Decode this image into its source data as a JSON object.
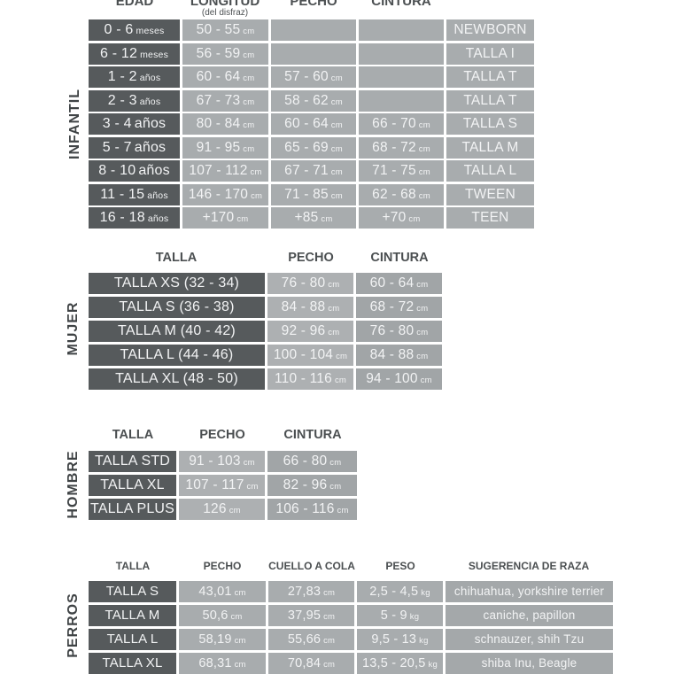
{
  "colors": {
    "background": "#ffffff",
    "dark_cell": "#565a5c",
    "light_cell": "#a8acae",
    "pecho_cell": "#adb0b2",
    "cintura_cell": "#a1a5a7",
    "suggestion_cell": "#a4a8aa",
    "cell_text": "#f2f3f4",
    "header_text": "#4b4f51",
    "section_label_text": "#3f4345"
  },
  "sections": {
    "infantil": {
      "label": "INFANTIL",
      "headers": [
        "EDAD",
        "LONGITUD",
        "PECHO",
        "CINTURA"
      ],
      "header_sub": "(del disfraz)",
      "rows": [
        {
          "cells": [
            {
              "v": "0 - 6",
              "u": "meses"
            },
            {
              "v": "50 - 55",
              "u": "cm"
            },
            {
              "v": ""
            },
            {
              "v": ""
            },
            {
              "v": "NEWBORN"
            }
          ]
        },
        {
          "cells": [
            {
              "v": "6 - 12",
              "u": "meses"
            },
            {
              "v": "56 - 59",
              "u": "cm"
            },
            {
              "v": ""
            },
            {
              "v": ""
            },
            {
              "v": "TALLA I"
            }
          ]
        },
        {
          "cells": [
            {
              "v": "1 - 2",
              "u": "años"
            },
            {
              "v": "60 - 64",
              "u": "cm"
            },
            {
              "v": "57 - 60",
              "u": "cm"
            },
            {
              "v": ""
            },
            {
              "v": "TALLA T"
            }
          ]
        },
        {
          "cells": [
            {
              "v": "2 - 3",
              "u": "años"
            },
            {
              "v": "67 - 73",
              "u": "cm"
            },
            {
              "v": "58 - 62",
              "u": "cm"
            },
            {
              "v": ""
            },
            {
              "v": "TALLA T"
            }
          ]
        },
        {
          "cells": [
            {
              "v": "3 - 4",
              "u": "años",
              "big_u": true
            },
            {
              "v": "80 - 84",
              "u": "cm"
            },
            {
              "v": "60 - 64",
              "u": "cm"
            },
            {
              "v": "66 - 70",
              "u": "cm"
            },
            {
              "v": "TALLA S"
            }
          ]
        },
        {
          "cells": [
            {
              "v": "5 - 7",
              "u": "años",
              "big_u": true
            },
            {
              "v": "91 - 95",
              "u": "cm"
            },
            {
              "v": "65 - 69",
              "u": "cm"
            },
            {
              "v": "68 - 72",
              "u": "cm"
            },
            {
              "v": "TALLA M"
            }
          ]
        },
        {
          "cells": [
            {
              "v": "8 - 10",
              "u": "años",
              "big_u": true
            },
            {
              "v": "107 - 112",
              "u": "cm"
            },
            {
              "v": "67 - 71",
              "u": "cm"
            },
            {
              "v": "71 - 75",
              "u": "cm"
            },
            {
              "v": "TALLA L"
            }
          ]
        },
        {
          "cells": [
            {
              "v": "11 - 15",
              "u": "años"
            },
            {
              "v": "146 - 170",
              "u": "cm"
            },
            {
              "v": "71 - 85",
              "u": "cm"
            },
            {
              "v": "62 - 68",
              "u": "cm"
            },
            {
              "v": "TWEEN"
            }
          ]
        },
        {
          "cells": [
            {
              "v": "16 - 18",
              "u": "años"
            },
            {
              "v": "+170",
              "u": "cm"
            },
            {
              "v": "+85",
              "u": "cm"
            },
            {
              "v": "+70",
              "u": "cm"
            },
            {
              "v": "TEEN"
            }
          ]
        }
      ]
    },
    "mujer": {
      "label": "MUJER",
      "headers": [
        "TALLA",
        "PECHO",
        "CINTURA"
      ],
      "rows": [
        {
          "cells": [
            {
              "v": "TALLA XS (32 - 34)"
            },
            {
              "v": "76 - 80",
              "u": "cm"
            },
            {
              "v": "60 - 64",
              "u": "cm"
            }
          ]
        },
        {
          "cells": [
            {
              "v": "TALLA S (36 - 38)"
            },
            {
              "v": "84 - 88",
              "u": "cm"
            },
            {
              "v": "68 - 72",
              "u": "cm"
            }
          ]
        },
        {
          "cells": [
            {
              "v": "TALLA M (40 - 42)"
            },
            {
              "v": "92 - 96",
              "u": "cm"
            },
            {
              "v": "76 - 80",
              "u": "cm"
            }
          ]
        },
        {
          "cells": [
            {
              "v": "TALLA L (44 - 46)"
            },
            {
              "v": "100 - 104",
              "u": "cm"
            },
            {
              "v": "84 - 88",
              "u": "cm"
            }
          ]
        },
        {
          "cells": [
            {
              "v": "TALLA XL (48 - 50)"
            },
            {
              "v": "110 - 116",
              "u": "cm"
            },
            {
              "v": "94 - 100",
              "u": "cm"
            }
          ]
        }
      ]
    },
    "hombre": {
      "label": "HOMBRE",
      "headers": [
        "TALLA",
        "PECHO",
        "CINTURA"
      ],
      "rows": [
        {
          "cells": [
            {
              "v": "TALLA STD"
            },
            {
              "v": "91 - 103",
              "u": "cm"
            },
            {
              "v": "66 - 80",
              "u": "cm"
            }
          ]
        },
        {
          "cells": [
            {
              "v": "TALLA XL"
            },
            {
              "v": "107 - 117",
              "u": "cm"
            },
            {
              "v": "82 - 96",
              "u": "cm"
            }
          ]
        },
        {
          "cells": [
            {
              "v": "TALLA PLUS"
            },
            {
              "v": "126",
              "u": "cm"
            },
            {
              "v": "106 - 116",
              "u": "cm"
            }
          ]
        }
      ]
    },
    "perros": {
      "label": "PERROS",
      "headers": [
        "TALLA",
        "PECHO",
        "CUELLO A COLA",
        "PESO",
        "SUGERENCIA DE RAZA"
      ],
      "rows": [
        {
          "cells": [
            {
              "v": "TALLA S"
            },
            {
              "v": "43,01",
              "u": "cm"
            },
            {
              "v": "27,83",
              "u": "cm"
            },
            {
              "v": "2,5 - 4,5",
              "u": "kg"
            },
            {
              "v": "chihuahua, yorkshire terrier"
            }
          ]
        },
        {
          "cells": [
            {
              "v": "TALLA M"
            },
            {
              "v": "50,6",
              "u": "cm"
            },
            {
              "v": "37,95",
              "u": "cm"
            },
            {
              "v": "5 - 9",
              "u": "kg"
            },
            {
              "v": "caniche, papillon"
            }
          ]
        },
        {
          "cells": [
            {
              "v": "TALLA L"
            },
            {
              "v": "58,19",
              "u": "cm"
            },
            {
              "v": "55,66",
              "u": "cm"
            },
            {
              "v": "9,5 - 13",
              "u": "kg"
            },
            {
              "v": "schnauzer, shih Tzu"
            }
          ]
        },
        {
          "cells": [
            {
              "v": "TALLA XL"
            },
            {
              "v": "68,31",
              "u": "cm"
            },
            {
              "v": "70,84",
              "u": "cm"
            },
            {
              "v": "13,5 - 20,5",
              "u": "kg"
            },
            {
              "v": "shiba Inu, Beagle"
            }
          ]
        }
      ]
    }
  }
}
